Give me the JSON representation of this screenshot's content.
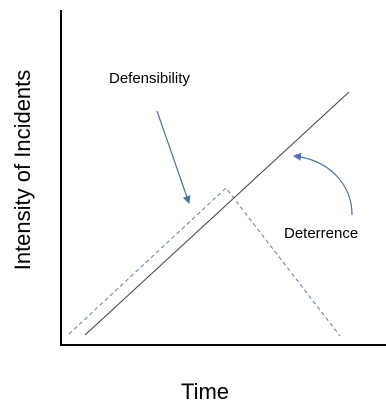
{
  "labels": {
    "x_axis": "Time",
    "y_axis": "Intensity of Incidents",
    "defensibility": "Defensibility",
    "deterrence": "Deterrence"
  },
  "colors": {
    "axis": "#000000",
    "solid_line": "#404040",
    "dashed_line": "#5b79b8",
    "arrow": "#4a6fb0"
  }
}
